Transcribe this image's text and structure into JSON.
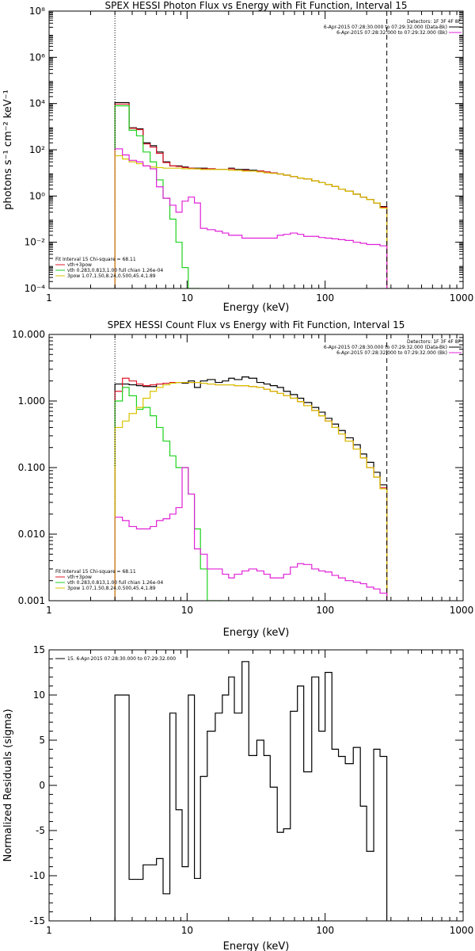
{
  "colors": {
    "data": "#000000",
    "total_fit": "#e0182b",
    "thermal": "#1fd21f",
    "broken_power_law": "#d8c400",
    "background": "#e020d8",
    "energy_range_line": "#e0a000"
  },
  "chart_data": [
    {
      "type": "line",
      "id": "photon",
      "title": "SPEX HESSI Photon Flux vs Energy with Fit Function, Interval 15",
      "xlabel": "Energy (keV)",
      "ylabel": "photons s⁻¹ cm⁻² keV⁻¹",
      "xscale": "log",
      "yscale": "log",
      "xlim": [
        1,
        1000
      ],
      "ylim": [
        0.0001,
        100000000
      ],
      "xticks": [
        {
          "v": 1,
          "label": "1"
        },
        {
          "v": 10,
          "label": "10"
        },
        {
          "v": 100,
          "label": "100"
        },
        {
          "v": 1000,
          "label": "1000"
        }
      ],
      "yticks": [
        {
          "v": 0.0001,
          "label": "10⁻⁴"
        },
        {
          "v": 0.01,
          "label": "10⁻²"
        },
        {
          "v": 1,
          "label": "10⁰"
        },
        {
          "v": 100,
          "label": "10²"
        },
        {
          "v": 10000,
          "label": "10⁴"
        },
        {
          "v": 1000000,
          "label": "10⁶"
        },
        {
          "v": 100000000,
          "label": "10⁸"
        }
      ],
      "vlines": [
        {
          "x": 3,
          "style": "dotted"
        },
        {
          "x": 280,
          "style": "dashed"
        }
      ],
      "legend_right": {
        "header": "Detectors: 1F 3F 4F 8F",
        "entries": [
          {
            "label": "6-Apr-2015 07:28:30.000 to 07:29:32.000 (Data-Bk)",
            "color": "#000000"
          },
          {
            "label": "6-Apr-2015 07:28:32.000 to 07:29:32.000 (Bk)",
            "color": "#e020d8"
          }
        ]
      },
      "legend_left": {
        "header": "Fit Interval 15   Chi-square = 68.11",
        "entries": [
          {
            "label": "vth+3pow",
            "color": "#e0182b"
          },
          {
            "label": "vth 0.283,0.813,1.00  full chian 1.26e-04",
            "color": "#1fd21f"
          },
          {
            "label": "3pow 1.07,1.50,8.24,0.500,45.4,1.89",
            "color": "#d8c400"
          }
        ]
      },
      "edges": [
        3.0,
        3.4,
        3.8,
        4.3,
        4.8,
        5.4,
        6.0,
        6.7,
        7.5,
        8.3,
        9.2,
        10.2,
        11.3,
        12.5,
        14.0,
        16.0,
        18.0,
        20.0,
        22.0,
        25.0,
        28.0,
        32.0,
        36.0,
        40.0,
        45.0,
        50.0,
        56.0,
        63.0,
        70.0,
        80.0,
        90.0,
        100.0,
        112.0,
        125.0,
        140.0,
        160.0,
        180.0,
        200.0,
        225.0,
        250.0,
        280.0
      ],
      "series": [
        {
          "name": "Data-Bk",
          "color": "#000000",
          "values": [
            11000,
            11000,
            900,
            800,
            200,
            150,
            80,
            30,
            20,
            20,
            18,
            16,
            16,
            16,
            15,
            14,
            14,
            16,
            14,
            14,
            13,
            12,
            11,
            10,
            9,
            8,
            7,
            6,
            5.5,
            4.5,
            3.8,
            3.2,
            2.6,
            2.0,
            1.6,
            1.2,
            0.9,
            0.7,
            0.5,
            0.35
          ]
        },
        {
          "name": "vth+3pow",
          "color": "#e0182b",
          "values": [
            9500,
            9500,
            850,
            750,
            180,
            130,
            70,
            28,
            20,
            19,
            17,
            16,
            15,
            15,
            15,
            14,
            14,
            15,
            13,
            13,
            12,
            12,
            11,
            10,
            9,
            8,
            7,
            6,
            5.5,
            4.5,
            3.8,
            3.2,
            2.6,
            2.0,
            1.6,
            1.2,
            0.9,
            0.7,
            0.5,
            0.33
          ]
        },
        {
          "name": "vth",
          "color": "#1fd21f",
          "values": [
            8000,
            8000,
            700,
            400,
            80,
            30,
            5,
            0.8,
            0.1,
            0.01,
            0.0008,
            5e-05,
            5e-05
          ]
        },
        {
          "name": "3pow",
          "color": "#d8c400",
          "values": [
            55,
            40,
            30,
            25,
            20,
            18,
            17,
            16,
            16,
            16,
            15,
            15,
            15,
            14,
            14,
            14,
            14,
            13,
            13,
            12,
            12,
            11,
            10,
            9.5,
            9,
            8,
            7,
            6,
            5.5,
            4.5,
            3.8,
            3.2,
            2.6,
            2.0,
            1.6,
            1.2,
            0.9,
            0.7,
            0.5,
            0.3
          ]
        },
        {
          "name": "Bk",
          "color": "#e020d8",
          "values": [
            110,
            60,
            35,
            30,
            20,
            15,
            2.5,
            0.8,
            0.4,
            0.2,
            0.6,
            0.9,
            0.5,
            0.04,
            0.035,
            0.03,
            0.025,
            0.02,
            0.02,
            0.015,
            0.015,
            0.015,
            0.015,
            0.015,
            0.02,
            0.022,
            0.025,
            0.022,
            0.018,
            0.018,
            0.016,
            0.015,
            0.014,
            0.013,
            0.012,
            0.01,
            0.009,
            0.008,
            0.008,
            0.007
          ]
        }
      ]
    },
    {
      "type": "line",
      "id": "count",
      "title": "SPEX HESSI Count Flux vs Energy with Fit Function, Interval 15",
      "xlabel": "Energy (keV)",
      "ylabel": "",
      "xscale": "log",
      "yscale": "log",
      "xlim": [
        1,
        1000
      ],
      "ylim": [
        0.001,
        10
      ],
      "xticks": [
        {
          "v": 1,
          "label": "1"
        },
        {
          "v": 10,
          "label": "10"
        },
        {
          "v": 100,
          "label": "100"
        },
        {
          "v": 1000,
          "label": "1000"
        }
      ],
      "yticks": [
        {
          "v": 0.001,
          "label": "0.001"
        },
        {
          "v": 0.01,
          "label": "0.010"
        },
        {
          "v": 0.1,
          "label": "0.100"
        },
        {
          "v": 1,
          "label": "1.000"
        },
        {
          "v": 10,
          "label": "10.000"
        }
      ],
      "vlines": [
        {
          "x": 3,
          "style": "dotted"
        },
        {
          "x": 280,
          "style": "dashed"
        }
      ],
      "legend_right": {
        "header": "Detectors: 1F 3F 4F 8F",
        "entries": [
          {
            "label": "6-Apr-2015 07:28:30.000 to 07:29:32.000 (Data-Bk)",
            "color": "#000000"
          },
          {
            "label": "6-Apr-2015 07:28:32.000 to 07:29:32.000 (Bk)",
            "color": "#e020d8"
          }
        ]
      },
      "legend_left": {
        "header": "Fit Interval 15   Chi-square = 68.11",
        "entries": [
          {
            "label": "vth+3pow",
            "color": "#e0182b"
          },
          {
            "label": "vth 0.283,0.813,1.00  full chian 1.26e-04",
            "color": "#1fd21f"
          },
          {
            "label": "3pow 1.07,1.50,8.24,0.500,45.4,1.89",
            "color": "#d8c400"
          }
        ]
      },
      "edges": [
        3.0,
        3.4,
        3.8,
        4.3,
        4.8,
        5.4,
        6.0,
        6.7,
        7.5,
        8.3,
        9.2,
        10.2,
        11.3,
        12.5,
        14.0,
        16.0,
        18.0,
        20.0,
        22.0,
        25.0,
        28.0,
        32.0,
        36.0,
        40.0,
        45.0,
        50.0,
        56.0,
        63.0,
        70.0,
        80.0,
        90.0,
        100.0,
        112.0,
        125.0,
        140.0,
        160.0,
        180.0,
        200.0,
        225.0,
        250.0,
        280.0
      ],
      "series": [
        {
          "name": "Data-Bk",
          "color": "#000000",
          "values": [
            1.8,
            1.8,
            1.75,
            1.7,
            1.65,
            1.65,
            1.8,
            1.85,
            1.9,
            1.9,
            1.85,
            2.0,
            1.6,
            2.0,
            2.1,
            1.9,
            2.0,
            2.2,
            2.1,
            2.3,
            2.2,
            1.9,
            1.8,
            1.7,
            1.6,
            1.4,
            1.25,
            1.1,
            0.95,
            0.8,
            0.68,
            0.55,
            0.45,
            0.36,
            0.28,
            0.22,
            0.16,
            0.12,
            0.085,
            0.055
          ]
        },
        {
          "name": "vth+3pow",
          "color": "#e0182b",
          "values": [
            1.4,
            2.2,
            2.0,
            1.8,
            1.7,
            1.75,
            1.8,
            1.85,
            1.9,
            1.9,
            1.9,
            1.9,
            1.9,
            1.85,
            1.8,
            1.75,
            1.75,
            1.75,
            1.7,
            1.7,
            1.65,
            1.6,
            1.5,
            1.4,
            1.3,
            1.2,
            1.1,
            0.98,
            0.85,
            0.72,
            0.6,
            0.5,
            0.4,
            0.32,
            0.25,
            0.19,
            0.14,
            0.1,
            0.072,
            0.05
          ]
        },
        {
          "name": "vth",
          "color": "#1fd21f",
          "values": [
            1.0,
            1.6,
            1.2,
            0.75,
            0.8,
            0.6,
            0.4,
            0.25,
            0.15,
            0.1,
            0.1,
            0.04,
            0.012,
            0.003,
            0.0008,
            0.0008
          ]
        },
        {
          "name": "3pow",
          "color": "#d8c400",
          "values": [
            0.4,
            0.5,
            0.65,
            0.8,
            1.1,
            1.4,
            1.6,
            1.75,
            1.85,
            1.9,
            1.9,
            1.9,
            1.9,
            1.85,
            1.8,
            1.75,
            1.75,
            1.75,
            1.7,
            1.7,
            1.65,
            1.6,
            1.5,
            1.4,
            1.3,
            1.2,
            1.1,
            0.98,
            0.85,
            0.72,
            0.6,
            0.5,
            0.4,
            0.32,
            0.25,
            0.19,
            0.14,
            0.1,
            0.072,
            0.048
          ]
        },
        {
          "name": "Bk",
          "color": "#e020d8",
          "values": [
            0.018,
            0.016,
            0.013,
            0.012,
            0.012,
            0.013,
            0.016,
            0.017,
            0.02,
            0.025,
            0.1,
            0.04,
            0.006,
            0.005,
            0.003,
            0.003,
            0.0025,
            0.0022,
            0.0025,
            0.0028,
            0.003,
            0.0028,
            0.0025,
            0.0022,
            0.0022,
            0.0025,
            0.0032,
            0.0036,
            0.0035,
            0.003,
            0.0028,
            0.0027,
            0.0024,
            0.0022,
            0.002,
            0.0019,
            0.0018,
            0.0016,
            0.0015,
            0.0013
          ]
        }
      ]
    },
    {
      "type": "line",
      "id": "resid",
      "title": "",
      "xlabel": "Energy (keV)",
      "ylabel": "Normalized Residuals (sigma)",
      "xscale": "log",
      "yscale": "linear",
      "xlim": [
        1,
        1000
      ],
      "ylim": [
        -15,
        15
      ],
      "xticks": [
        {
          "v": 1,
          "label": "1"
        },
        {
          "v": 10,
          "label": "10"
        },
        {
          "v": 100,
          "label": "100"
        },
        {
          "v": 1000,
          "label": "1000"
        }
      ],
      "yticks": [
        {
          "v": -15,
          "label": "-15"
        },
        {
          "v": -10,
          "label": "-10"
        },
        {
          "v": -5,
          "label": "-5"
        },
        {
          "v": 0,
          "label": "0"
        },
        {
          "v": 5,
          "label": "5"
        },
        {
          "v": 10,
          "label": "10"
        },
        {
          "v": 15,
          "label": "15"
        }
      ],
      "vlines": [],
      "legend_left": {
        "header": "",
        "entries": [
          {
            "label": "15.  6-Apr-2015 07:28:30.000 to 07:29:32.000",
            "color": "#000000"
          }
        ]
      },
      "edges": [
        3.0,
        3.4,
        3.8,
        4.3,
        4.8,
        5.4,
        6.0,
        6.7,
        7.5,
        8.3,
        9.2,
        10.2,
        11.3,
        12.5,
        14.0,
        16.0,
        18.0,
        20.0,
        22.0,
        25.0,
        28.0,
        32.0,
        36.0,
        40.0,
        45.0,
        50.0,
        56.0,
        63.0,
        70.0,
        80.0,
        90.0,
        100.0,
        112.0,
        125.0,
        140.0,
        160.0,
        180.0,
        200.0,
        225.0,
        250.0,
        280.0
      ],
      "series": [
        {
          "name": "residuals",
          "color": "#000000",
          "values": [
            10.0,
            10.0,
            -10.4,
            -10.4,
            -8.8,
            -8.8,
            -8.1,
            -12.0,
            8.0,
            -2.7,
            -9.0,
            10.0,
            -10.3,
            1.0,
            6.0,
            8.0,
            10.0,
            12.0,
            8.0,
            13.7,
            3.3,
            5.0,
            3.3,
            -0.2,
            -5.2,
            -4.8,
            8.2,
            11.0,
            1.5,
            12.0,
            6.0,
            12.5,
            4.0,
            3.2,
            2.4,
            4.2,
            -2.3,
            -7.3,
            4.0,
            3.2
          ]
        }
      ]
    }
  ]
}
